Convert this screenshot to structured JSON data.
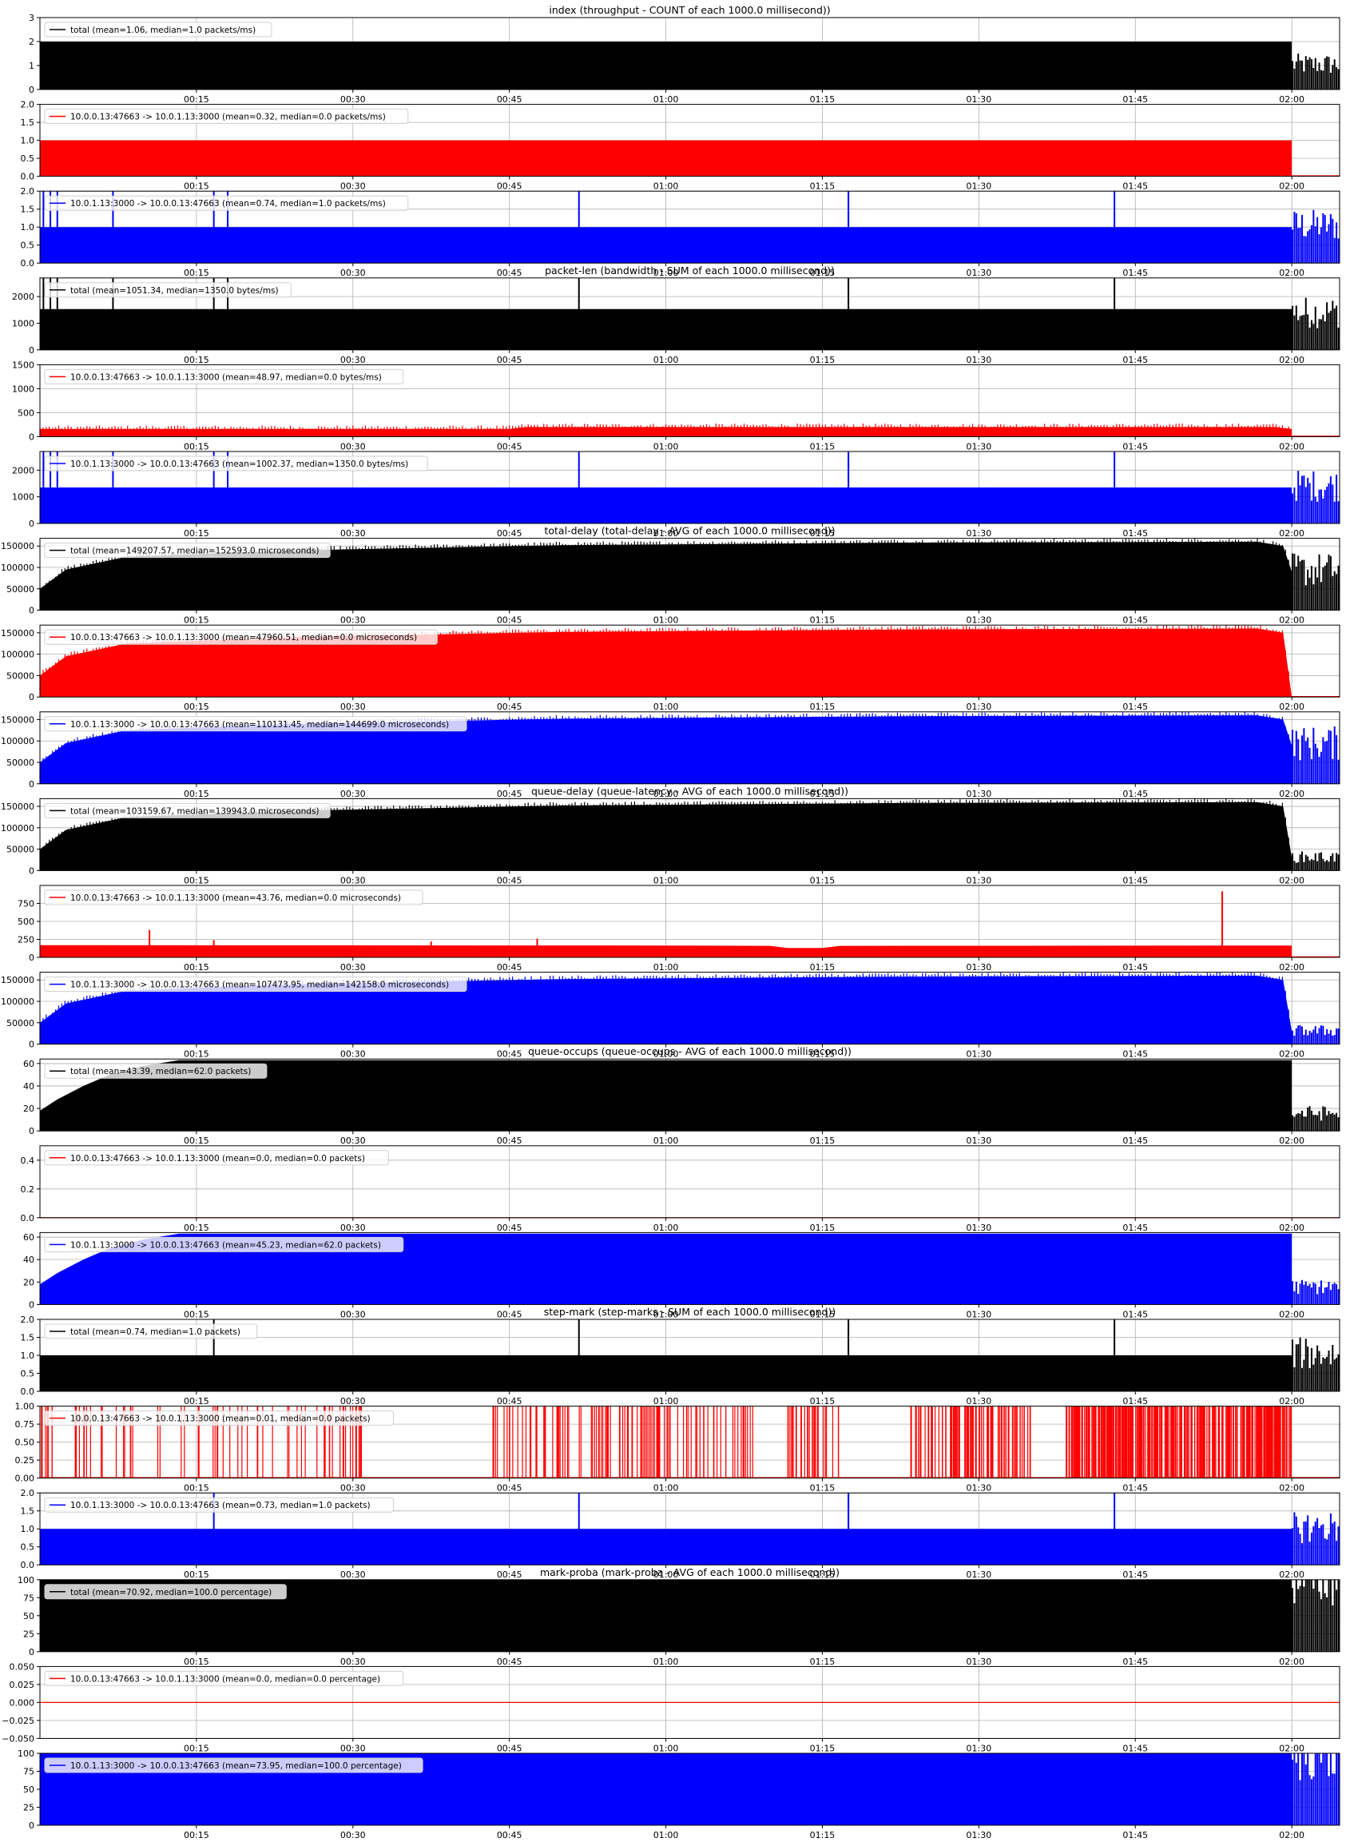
{
  "figure": {
    "x_ticks": [
      "00:15",
      "00:30",
      "00:45",
      "01:00",
      "01:15",
      "01:30",
      "01:45",
      "02:00"
    ],
    "x_tick_values_s": [
      900,
      1800,
      2700,
      3600,
      4500,
      5400,
      6300,
      7200
    ],
    "x_range_s": [
      0,
      7475
    ],
    "change_time_s": 7200,
    "series_colors": {
      "total": "#000000",
      "uplink": "#ff0000",
      "downlink": "#0000ff"
    }
  },
  "chart_data": [
    {
      "type": "bar",
      "title": "index (throughput - COUNT of each 1000.0 millisecond))",
      "legend": "total (mean=1.06, median=1.0 packets/ms)",
      "series_color": "#000000",
      "ylim": [
        0,
        3
      ],
      "y_ticks": [
        "0",
        "1",
        "2",
        "3"
      ],
      "y_tick_values": [
        0,
        1,
        2,
        3
      ],
      "profile": [
        [
          0,
          2
        ],
        [
          7200,
          2
        ],
        [
          7200,
          1
        ]
      ],
      "tail": "flicker",
      "grid": true,
      "legend_position": "top-left"
    },
    {
      "type": "bar",
      "title": "",
      "legend": "10.0.0.13:47663 -> 10.0.1.13:3000 (mean=0.32, median=0.0 packets/ms)",
      "series_color": "#ff0000",
      "ylim": [
        0,
        2
      ],
      "y_ticks": [
        "0.0",
        "0.5",
        "1.0",
        "1.5",
        "2.0"
      ],
      "y_tick_values": [
        0,
        0.5,
        1,
        1.5,
        2
      ],
      "profile": [
        [
          0,
          1
        ],
        [
          7200,
          1
        ],
        [
          7200,
          0
        ]
      ],
      "tail": "flat",
      "grid": true,
      "legend_position": "top-left"
    },
    {
      "type": "bar",
      "title": "",
      "legend": "10.0.1.13:3000 -> 10.0.0.13:47663 (mean=0.74, median=1.0 packets/ms)",
      "series_color": "#0000ff",
      "ylim": [
        0,
        2
      ],
      "y_ticks": [
        "0.0",
        "0.5",
        "1.0",
        "1.5",
        "2.0"
      ],
      "y_tick_values": [
        0,
        0.5,
        1,
        1.5,
        2
      ],
      "profile": [
        [
          0,
          1
        ],
        [
          7200,
          1
        ],
        [
          7200,
          1
        ]
      ],
      "spikes": [
        [
          20,
          2
        ],
        [
          60,
          2
        ],
        [
          100,
          2
        ],
        [
          420,
          2
        ],
        [
          1000,
          2
        ],
        [
          1080,
          2
        ],
        [
          3100,
          2
        ],
        [
          4650,
          2
        ],
        [
          6180,
          2
        ]
      ],
      "tail": "flicker",
      "grid": true,
      "legend_position": "top-left"
    },
    {
      "type": "bar",
      "title": "packet-len (bandwidth - SUM of each 1000.0 millisecond))",
      "legend": "total (mean=1051.34, median=1350.0 bytes/ms)",
      "series_color": "#000000",
      "ylim": [
        0,
        2700
      ],
      "y_ticks": [
        "0",
        "1000",
        "2000"
      ],
      "y_tick_values": [
        0,
        1000,
        2000
      ],
      "profile": [
        [
          0,
          1530
        ],
        [
          7200,
          1530
        ],
        [
          7200,
          1350
        ]
      ],
      "spikes": [
        [
          20,
          2700
        ],
        [
          60,
          2700
        ],
        [
          100,
          2700
        ],
        [
          420,
          2700
        ],
        [
          1000,
          2700
        ],
        [
          1080,
          2700
        ],
        [
          3100,
          2700
        ],
        [
          4650,
          2700
        ],
        [
          6180,
          2700
        ]
      ],
      "tail": "flicker",
      "grid": true,
      "legend_position": "top-left"
    },
    {
      "type": "area",
      "title": "",
      "legend": "10.0.0.13:47663 -> 10.0.1.13:3000 (mean=48.97, median=0.0 bytes/ms)",
      "series_color": "#ff0000",
      "ylim": [
        0,
        1500
      ],
      "y_ticks": [
        "0",
        "500",
        "1000",
        "1500"
      ],
      "y_tick_values": [
        0,
        500,
        1000,
        1500
      ],
      "profile": [
        [
          0,
          160
        ],
        [
          2700,
          160
        ],
        [
          2800,
          200
        ],
        [
          7100,
          200
        ],
        [
          7200,
          160
        ],
        [
          7200,
          0
        ]
      ],
      "tail": "flat",
      "grid": true,
      "legend_position": "top-left"
    },
    {
      "type": "bar",
      "title": "",
      "legend": "10.0.1.13:3000 -> 10.0.0.13:47663 (mean=1002.37, median=1350.0 bytes/ms)",
      "series_color": "#0000ff",
      "ylim": [
        0,
        2700
      ],
      "y_ticks": [
        "0",
        "1000",
        "2000"
      ],
      "y_tick_values": [
        0,
        1000,
        2000
      ],
      "profile": [
        [
          0,
          1350
        ],
        [
          7200,
          1350
        ],
        [
          7200,
          1350
        ]
      ],
      "spikes": [
        [
          20,
          2700
        ],
        [
          60,
          2700
        ],
        [
          100,
          2700
        ],
        [
          420,
          2700
        ],
        [
          1000,
          2700
        ],
        [
          1080,
          2700
        ],
        [
          3100,
          2700
        ],
        [
          4650,
          2700
        ],
        [
          6180,
          2700
        ]
      ],
      "tail": "flicker",
      "grid": true,
      "legend_position": "top-left"
    },
    {
      "type": "area",
      "title": "total-delay (total-delay - AVG of each 1000.0 millisecond))",
      "legend": "total (mean=149207.57, median=152593.0 microseconds)",
      "series_color": "#000000",
      "ylim": [
        0,
        168000
      ],
      "y_ticks": [
        "0",
        "50000",
        "100000",
        "150000"
      ],
      "y_tick_values": [
        0,
        50000,
        100000,
        150000
      ],
      "profile": [
        [
          0,
          50000
        ],
        [
          150,
          95000
        ],
        [
          500,
          125000
        ],
        [
          1500,
          140000
        ],
        [
          3000,
          152000
        ],
        [
          5000,
          158000
        ],
        [
          7000,
          160000
        ],
        [
          7150,
          150000
        ],
        [
          7200,
          90000
        ],
        [
          7475,
          90000
        ]
      ],
      "tail": "flicker",
      "grid": true,
      "legend_position": "top-left"
    },
    {
      "type": "area",
      "title": "",
      "legend": "10.0.0.13:47663 -> 10.0.1.13:3000 (mean=47960.51, median=0.0 microseconds)",
      "series_color": "#ff0000",
      "ylim": [
        0,
        168000
      ],
      "y_ticks": [
        "0",
        "50000",
        "100000",
        "150000"
      ],
      "y_tick_values": [
        0,
        50000,
        100000,
        150000
      ],
      "profile": [
        [
          0,
          50000
        ],
        [
          150,
          95000
        ],
        [
          500,
          125000
        ],
        [
          1500,
          140000
        ],
        [
          3000,
          152000
        ],
        [
          5000,
          158000
        ],
        [
          7000,
          160000
        ],
        [
          7150,
          150000
        ],
        [
          7200,
          0
        ]
      ],
      "tail": "flat",
      "grid": true,
      "legend_position": "top-left"
    },
    {
      "type": "area",
      "title": "",
      "legend": "10.0.1.13:3000 -> 10.0.0.13:47663 (mean=110131.45, median=144699.0 microseconds)",
      "series_color": "#0000ff",
      "ylim": [
        0,
        168000
      ],
      "y_ticks": [
        "0",
        "50000",
        "100000",
        "150000"
      ],
      "y_tick_values": [
        0,
        50000,
        100000,
        150000
      ],
      "profile": [
        [
          0,
          50000
        ],
        [
          150,
          95000
        ],
        [
          500,
          125000
        ],
        [
          1500,
          140000
        ],
        [
          3000,
          152000
        ],
        [
          5000,
          158000
        ],
        [
          7000,
          160000
        ],
        [
          7150,
          150000
        ],
        [
          7200,
          90000
        ],
        [
          7475,
          90000
        ]
      ],
      "tail": "flicker",
      "grid": true,
      "legend_position": "top-left"
    },
    {
      "type": "area",
      "title": "queue-delay (queue-latency - AVG of each 1000.0 millisecond))",
      "legend": "total (mean=103159.67, median=139943.0 microseconds)",
      "series_color": "#000000",
      "ylim": [
        0,
        168000
      ],
      "y_ticks": [
        "0",
        "50000",
        "100000",
        "150000"
      ],
      "y_tick_values": [
        0,
        50000,
        100000,
        150000
      ],
      "profile": [
        [
          0,
          50000
        ],
        [
          150,
          95000
        ],
        [
          500,
          125000
        ],
        [
          1500,
          140000
        ],
        [
          3000,
          152000
        ],
        [
          5000,
          158000
        ],
        [
          7000,
          160000
        ],
        [
          7150,
          150000
        ],
        [
          7200,
          30000
        ],
        [
          7475,
          30000
        ]
      ],
      "tail": "flicker",
      "grid": true,
      "legend_position": "top-left"
    },
    {
      "type": "area",
      "title": "",
      "legend": "10.0.0.13:47663 -> 10.0.1.13:3000 (mean=43.76, median=0.0 microseconds)",
      "series_color": "#ff0000",
      "ylim": [
        0,
        1000
      ],
      "y_ticks": [
        "0",
        "250",
        "500",
        "750"
      ],
      "y_tick_values": [
        0,
        250,
        500,
        750
      ],
      "profile": [
        [
          0,
          170
        ],
        [
          3600,
          165
        ],
        [
          4200,
          160
        ],
        [
          4300,
          130
        ],
        [
          4500,
          130
        ],
        [
          4600,
          160
        ],
        [
          7200,
          165
        ],
        [
          7200,
          0
        ]
      ],
      "spikes": [
        [
          630,
          380
        ],
        [
          1000,
          240
        ],
        [
          2250,
          220
        ],
        [
          2860,
          260
        ],
        [
          6800,
          920
        ]
      ],
      "tail": "flat",
      "grid": true,
      "legend_position": "top-left"
    },
    {
      "type": "area",
      "title": "",
      "legend": "10.0.1.13:3000 -> 10.0.0.13:47663 (mean=107473.95, median=142158.0 microseconds)",
      "series_color": "#0000ff",
      "ylim": [
        0,
        168000
      ],
      "y_ticks": [
        "0",
        "50000",
        "100000",
        "150000"
      ],
      "y_tick_values": [
        0,
        50000,
        100000,
        150000
      ],
      "profile": [
        [
          0,
          50000
        ],
        [
          150,
          95000
        ],
        [
          500,
          125000
        ],
        [
          1500,
          140000
        ],
        [
          3000,
          152000
        ],
        [
          5000,
          158000
        ],
        [
          7000,
          160000
        ],
        [
          7150,
          150000
        ],
        [
          7200,
          30000
        ],
        [
          7475,
          30000
        ]
      ],
      "tail": "flicker",
      "grid": true,
      "legend_position": "top-left"
    },
    {
      "type": "area",
      "title": "queue-occups (queue-occups - AVG of each 1000.0 millisecond))",
      "legend": "total (mean=43.39, median=62.0 packets)",
      "series_color": "#000000",
      "ylim": [
        0,
        64
      ],
      "y_ticks": [
        "0",
        "20",
        "40",
        "60"
      ],
      "y_tick_values": [
        0,
        20,
        40,
        60
      ],
      "profile": [
        [
          0,
          18
        ],
        [
          100,
          28
        ],
        [
          250,
          40
        ],
        [
          400,
          50
        ],
        [
          600,
          58
        ],
        [
          800,
          63
        ],
        [
          7200,
          63
        ],
        [
          7200,
          15
        ],
        [
          7475,
          15
        ]
      ],
      "tail": "flicker",
      "grid": true,
      "legend_position": "top-left"
    },
    {
      "type": "line",
      "title": "",
      "legend": "10.0.0.13:47663 -> 10.0.1.13:3000 (mean=0.0, median=0.0 packets)",
      "series_color": "#ff0000",
      "ylim": [
        0,
        0.5
      ],
      "y_ticks": [
        "0.0",
        "0.2",
        "0.4"
      ],
      "y_tick_values": [
        0,
        0.2,
        0.4
      ],
      "profile": [
        [
          0,
          0
        ],
        [
          7475,
          0
        ]
      ],
      "tail": "flat",
      "grid": true,
      "legend_position": "top-left"
    },
    {
      "type": "area",
      "title": "",
      "legend": "10.0.1.13:3000 -> 10.0.0.13:47663 (mean=45.23, median=62.0 packets)",
      "series_color": "#0000ff",
      "ylim": [
        0,
        64
      ],
      "y_ticks": [
        "0",
        "20",
        "40",
        "60"
      ],
      "y_tick_values": [
        0,
        20,
        40,
        60
      ],
      "profile": [
        [
          0,
          18
        ],
        [
          100,
          28
        ],
        [
          250,
          40
        ],
        [
          400,
          50
        ],
        [
          600,
          58
        ],
        [
          800,
          63
        ],
        [
          7200,
          63
        ],
        [
          7200,
          15
        ],
        [
          7475,
          15
        ]
      ],
      "tail": "flicker",
      "grid": true,
      "legend_position": "top-left"
    },
    {
      "type": "bar",
      "title": "step-mark (step-marks - SUM of each 1000.0 millisecond))",
      "legend": "total (mean=0.74, median=1.0 packets)",
      "series_color": "#000000",
      "ylim": [
        0,
        2
      ],
      "y_ticks": [
        "0.0",
        "0.5",
        "1.0",
        "1.5",
        "2.0"
      ],
      "y_tick_values": [
        0,
        0.5,
        1,
        1.5,
        2
      ],
      "profile": [
        [
          0,
          1
        ],
        [
          7200,
          1
        ],
        [
          7200,
          1
        ]
      ],
      "spikes": [
        [
          1000,
          2
        ],
        [
          3100,
          2
        ],
        [
          4650,
          2
        ],
        [
          6180,
          2
        ]
      ],
      "tail": "flicker",
      "grid": true,
      "legend_position": "top-left"
    },
    {
      "type": "bar",
      "title": "",
      "legend": "10.0.0.13:47663 -> 10.0.1.13:3000 (mean=0.01, median=0.0 packets)",
      "series_color": "#ff0000",
      "ylim": [
        0,
        1
      ],
      "y_ticks": [
        "0.00",
        "0.25",
        "0.50",
        "0.75",
        "1.00"
      ],
      "y_tick_values": [
        0,
        0.25,
        0.5,
        0.75,
        1
      ],
      "profile": [
        [
          0,
          0
        ],
        [
          7475,
          0
        ]
      ],
      "spike_bands": [
        [
          0,
          1900,
          70
        ],
        [
          2600,
          4100,
          110
        ],
        [
          4300,
          4600,
          30
        ],
        [
          5000,
          5700,
          90
        ],
        [
          5900,
          7200,
          320
        ]
      ],
      "tail": "flat",
      "grid": true,
      "legend_position": "top-left"
    },
    {
      "type": "bar",
      "title": "",
      "legend": "10.0.1.13:3000 -> 10.0.0.13:47663 (mean=0.73, median=1.0 packets)",
      "series_color": "#0000ff",
      "ylim": [
        0,
        2
      ],
      "y_ticks": [
        "0.0",
        "0.5",
        "1.0",
        "1.5",
        "2.0"
      ],
      "y_tick_values": [
        0,
        0.5,
        1,
        1.5,
        2
      ],
      "profile": [
        [
          0,
          1
        ],
        [
          7200,
          1
        ],
        [
          7200,
          1
        ]
      ],
      "spikes": [
        [
          1000,
          2
        ],
        [
          3100,
          2
        ],
        [
          4650,
          2
        ],
        [
          6180,
          2
        ]
      ],
      "tail": "flicker",
      "grid": true,
      "legend_position": "top-left"
    },
    {
      "type": "area",
      "title": "mark-proba (mark-proba - AVG of each 1000.0 millisecond))",
      "legend": "total (mean=70.92, median=100.0 percentage)",
      "series_color": "#000000",
      "ylim": [
        0,
        100
      ],
      "y_ticks": [
        "0",
        "25",
        "50",
        "75",
        "100"
      ],
      "y_tick_values": [
        0,
        25,
        50,
        75,
        100
      ],
      "profile": [
        [
          0,
          100
        ],
        [
          7200,
          100
        ],
        [
          7200,
          100
        ]
      ],
      "tail": "flicker",
      "grid": true,
      "legend_position": "top-left"
    },
    {
      "type": "line",
      "title": "",
      "legend": "10.0.0.13:47663 -> 10.0.1.13:3000 (mean=0.0, median=0.0 percentage)",
      "series_color": "#ff0000",
      "ylim": [
        -0.05,
        0.05
      ],
      "y_ticks": [
        "−0.050",
        "−0.025",
        "0.000",
        "0.025",
        "0.050"
      ],
      "y_tick_values": [
        -0.05,
        -0.025,
        0,
        0.025,
        0.05
      ],
      "profile": [
        [
          0,
          0
        ],
        [
          7475,
          0
        ]
      ],
      "tail": "flat",
      "grid": true,
      "legend_position": "top-left"
    },
    {
      "type": "area",
      "title": "",
      "legend": "10.0.1.13:3000 -> 10.0.0.13:47663 (mean=73.95, median=100.0 percentage)",
      "series_color": "#0000ff",
      "ylim": [
        0,
        100
      ],
      "y_ticks": [
        "0",
        "25",
        "50",
        "75",
        "100"
      ],
      "y_tick_values": [
        0,
        25,
        50,
        75,
        100
      ],
      "profile": [
        [
          0,
          100
        ],
        [
          7200,
          100
        ],
        [
          7200,
          100
        ]
      ],
      "tail": "flicker",
      "grid": true,
      "legend_position": "top-left"
    }
  ]
}
